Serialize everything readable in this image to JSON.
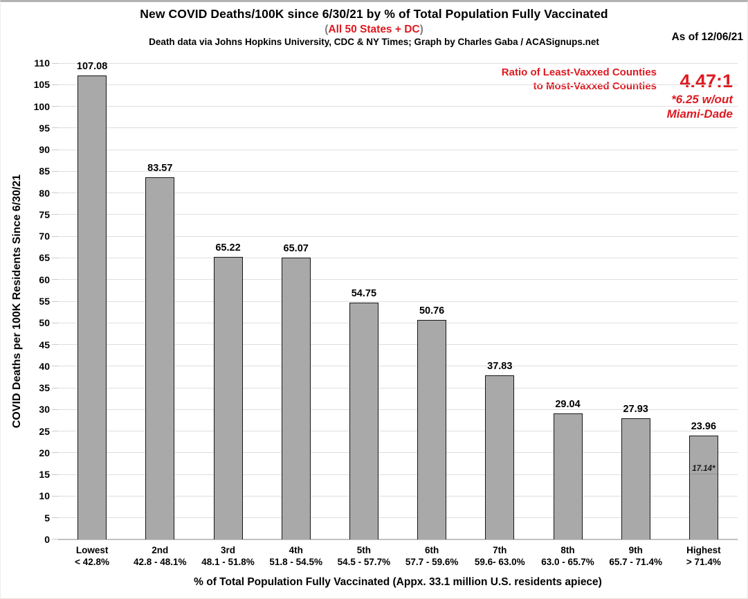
{
  "colors": {
    "accent_red": "#dd1a21",
    "paren_gray": "#7f7f7f",
    "bar_fill": "#a9a9a9",
    "bar_border": "#161616",
    "gridline": "#dedede"
  },
  "header": {
    "title": "New COVID Deaths/100K since 6/30/21 by % of Total Population Fully Vaccinated",
    "subtitle_paren_open": "(",
    "subtitle_highlight": "All 50 States + DC",
    "subtitle_paren_close": ")",
    "credit": "Death data via Johns Hopkins University, CDC & NY Times; Graph by Charles Gaba / ACASignups.net",
    "as_of": "As of 12/06/21"
  },
  "ratio_callout": {
    "label_line1": "Ratio of Least-Vaxxed Counties",
    "label_line2": "to Most-Vaxxed Counties",
    "value": "4.47:1",
    "footnote_line1": "*6.25 w/out",
    "footnote_line2": "Miami-Dade"
  },
  "chart_data": {
    "type": "bar",
    "title": "New COVID Deaths/100K since 6/30/21 by % of Total Population Fully Vaccinated (All 50 States + DC)",
    "xlabel": "% of Total Population Fully Vaccinated (Appx. 33.1 million U.S. residents apiece)",
    "ylabel": "COVID Deaths per 100K Residents Since 6/30/21",
    "ylim": [
      0,
      110
    ],
    "ytick_step": 5,
    "yticks": [
      0,
      5,
      10,
      15,
      20,
      25,
      30,
      35,
      40,
      45,
      50,
      55,
      60,
      65,
      70,
      75,
      80,
      85,
      90,
      95,
      100,
      105,
      110
    ],
    "grid": true,
    "legend": "none",
    "categories": [
      "Lowest",
      "2nd",
      "3rd",
      "4th",
      "5th",
      "6th",
      "7th",
      "8th",
      "9th",
      "Highest"
    ],
    "ranges": [
      "< 42.8%",
      "42.8 - 48.1%",
      "48.1 - 51.8%",
      "51.8 - 54.5%",
      "54.5 - 57.7%",
      "57.7 - 59.6%",
      "59.6- 63.0%",
      "63.0 - 65.7%",
      "65.7 - 71.4%",
      "> 71.4%"
    ],
    "values": [
      107.08,
      83.57,
      65.22,
      65.07,
      54.75,
      50.76,
      37.83,
      29.04,
      27.93,
      23.96
    ],
    "value_labels": [
      "107.08",
      "83.57",
      "65.22",
      "65.07",
      "54.75",
      "50.76",
      "37.83",
      "29.04",
      "27.93",
      "23.96"
    ],
    "annotation": {
      "bar_index": 9,
      "label": "17.14*",
      "value": 17.14
    }
  }
}
